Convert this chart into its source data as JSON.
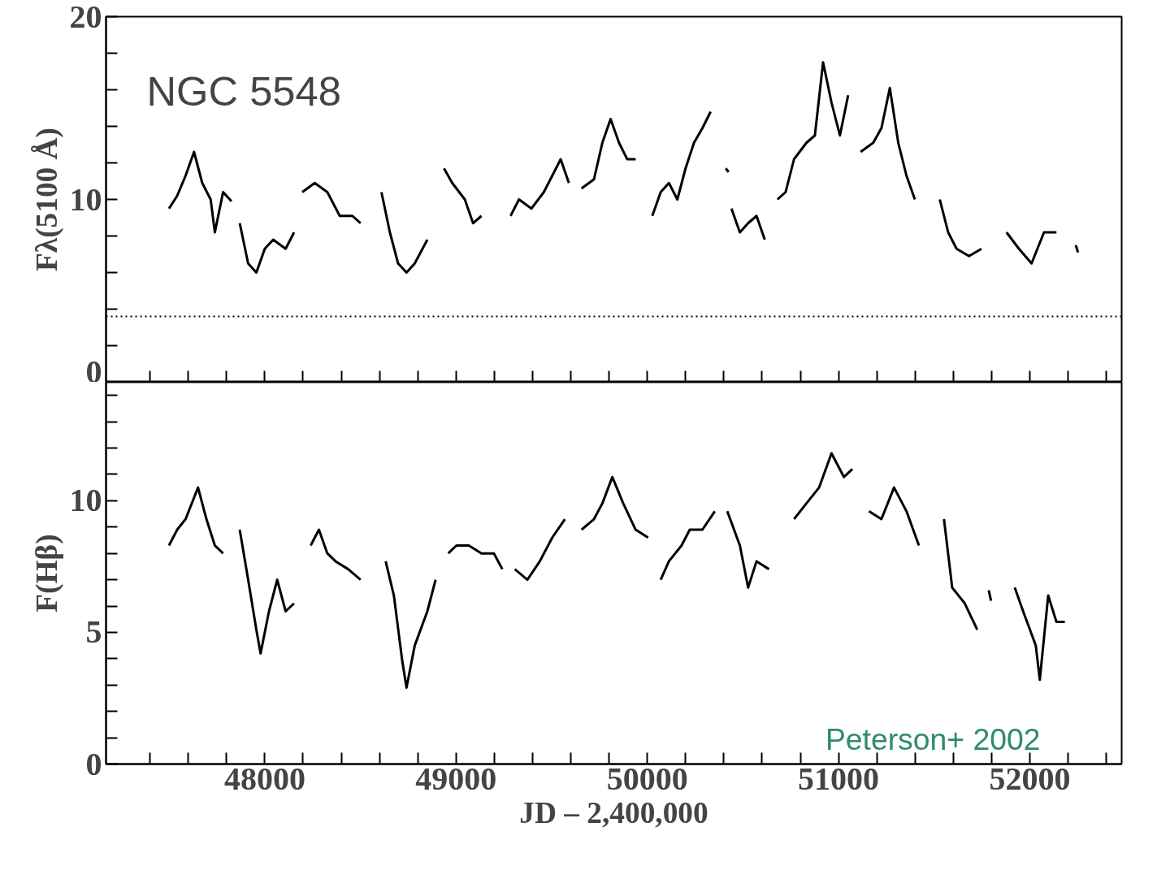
{
  "chart_data": [
    {
      "type": "line",
      "ylabel": "Fλ(5100 Å)",
      "annotations": [
        "NGC 5548"
      ],
      "tick_labels": "y",
      "xlim": [
        47170,
        52480
      ],
      "ylim": [
        0,
        20
      ],
      "xticks": [
        {
          "value": 47400,
          "label": null
        },
        {
          "value": 47600,
          "label": null
        },
        {
          "value": 47800,
          "label": null
        },
        {
          "value": 48000,
          "label": null
        },
        {
          "value": 48200,
          "label": null
        },
        {
          "value": 48400,
          "label": null
        },
        {
          "value": 48600,
          "label": null
        },
        {
          "value": 48800,
          "label": null
        },
        {
          "value": 49000,
          "label": null
        },
        {
          "value": 49200,
          "label": null
        },
        {
          "value": 49400,
          "label": null
        },
        {
          "value": 49600,
          "label": null
        },
        {
          "value": 49800,
          "label": null
        },
        {
          "value": 50000,
          "label": null
        },
        {
          "value": 50200,
          "label": null
        },
        {
          "value": 50400,
          "label": null
        },
        {
          "value": 50600,
          "label": null
        },
        {
          "value": 50800,
          "label": null
        },
        {
          "value": 51000,
          "label": null
        },
        {
          "value": 51200,
          "label": null
        },
        {
          "value": 51400,
          "label": null
        },
        {
          "value": 51600,
          "label": null
        },
        {
          "value": 51800,
          "label": null
        },
        {
          "value": 52000,
          "label": null
        },
        {
          "value": 52200,
          "label": null
        },
        {
          "value": 52400,
          "label": null
        }
      ],
      "yticks": [
        0,
        {
          "value": 2,
          "label": null
        },
        {
          "value": 4,
          "label": null
        },
        {
          "value": 6,
          "label": null
        },
        {
          "value": 8,
          "label": null
        },
        10,
        {
          "value": 12,
          "label": null
        },
        {
          "value": 14,
          "label": null
        },
        {
          "value": 16,
          "label": null
        },
        {
          "value": 18,
          "label": null
        },
        20
      ],
      "ref_lines": [
        {
          "axis": "y",
          "value": 3.6,
          "line_style": "dotted"
        }
      ],
      "x": [
        47499,
        47542,
        47586,
        47630,
        47673,
        47717,
        47739,
        47782,
        47826,
        47848,
        47869,
        47913,
        47956,
        48000,
        48044,
        48109,
        48153,
        48175,
        48196,
        48261,
        48327,
        48392,
        48458,
        48501,
        48560,
        48610,
        48654,
        48697,
        48741,
        48784,
        48850,
        48900,
        48937,
        48980,
        49046,
        49089,
        49133,
        49200,
        49285,
        49329,
        49394,
        49459,
        49503,
        49547,
        49590,
        49620,
        49656,
        49721,
        49765,
        49808,
        49852,
        49895,
        49939,
        49980,
        50026,
        50070,
        50113,
        50157,
        50200,
        50244,
        50288,
        50331,
        50370,
        50410,
        50425,
        50432,
        50440,
        50484,
        50527,
        50571,
        50614,
        50650,
        50680,
        50723,
        50767,
        50832,
        50876,
        50919,
        50963,
        51007,
        51050,
        51080,
        51115,
        51181,
        51224,
        51268,
        51312,
        51355,
        51399,
        51460,
        51529,
        51573,
        51617,
        51682,
        51747,
        51810,
        51878,
        51943,
        52009,
        52074,
        52139,
        52200,
        52240,
        52252
      ],
      "series": [
        {
          "color": "#000000",
          "values": [
            9.5,
            10.2,
            11.3,
            12.6,
            10.9,
            10.0,
            8.2,
            10.4,
            9.9,
            null,
            8.7,
            6.5,
            6.0,
            7.3,
            7.8,
            7.3,
            8.2,
            null,
            10.4,
            10.9,
            10.4,
            9.1,
            9.1,
            8.7,
            null,
            10.4,
            8.2,
            6.5,
            6.0,
            6.5,
            7.8,
            null,
            11.7,
            10.9,
            10.0,
            8.7,
            9.1,
            null,
            9.1,
            10.0,
            9.5,
            10.4,
            11.3,
            12.2,
            10.9,
            null,
            10.6,
            11.1,
            13.1,
            14.4,
            13.1,
            12.2,
            12.2,
            null,
            9.1,
            10.4,
            10.9,
            10.0,
            11.7,
            13.1,
            13.9,
            14.8,
            null,
            11.7,
            11.5,
            null,
            9.5,
            8.2,
            8.7,
            9.1,
            7.8,
            null,
            10.0,
            10.4,
            12.2,
            13.1,
            13.5,
            17.5,
            15.3,
            13.5,
            15.7,
            null,
            12.6,
            13.1,
            13.9,
            16.1,
            13.1,
            11.3,
            10.0,
            null,
            10.0,
            8.2,
            7.3,
            6.9,
            7.3,
            null,
            8.2,
            7.3,
            6.5,
            8.2,
            8.2,
            null,
            7.5,
            7.1
          ]
        }
      ]
    },
    {
      "type": "line",
      "ylabel": "F(Hβ)",
      "xlabel": "JD – 2,400,000",
      "annotations": [
        "Peterson+ 2002"
      ],
      "xlim": [
        47170,
        52480
      ],
      "ylim": [
        0,
        14.5
      ],
      "xticks": [
        {
          "value": 47400,
          "label": null
        },
        {
          "value": 47600,
          "label": null
        },
        {
          "value": 47800,
          "label": null
        },
        48000,
        {
          "value": 48200,
          "label": null
        },
        {
          "value": 48400,
          "label": null
        },
        {
          "value": 48600,
          "label": null
        },
        {
          "value": 48800,
          "label": null
        },
        49000,
        {
          "value": 49200,
          "label": null
        },
        {
          "value": 49400,
          "label": null
        },
        {
          "value": 49600,
          "label": null
        },
        {
          "value": 49800,
          "label": null
        },
        50000,
        {
          "value": 50200,
          "label": null
        },
        {
          "value": 50400,
          "label": null
        },
        {
          "value": 50600,
          "label": null
        },
        {
          "value": 50800,
          "label": null
        },
        51000,
        {
          "value": 51200,
          "label": null
        },
        {
          "value": 51400,
          "label": null
        },
        {
          "value": 51600,
          "label": null
        },
        {
          "value": 51800,
          "label": null
        },
        52000,
        {
          "value": 52200,
          "label": null
        },
        {
          "value": 52400,
          "label": null
        }
      ],
      "yticks": [
        0,
        {
          "value": 1,
          "label": null
        },
        {
          "value": 2,
          "label": null
        },
        {
          "value": 3,
          "label": null
        },
        {
          "value": 4,
          "label": null
        },
        5,
        {
          "value": 6,
          "label": null
        },
        {
          "value": 7,
          "label": null
        },
        {
          "value": 8,
          "label": null
        },
        {
          "value": 9,
          "label": null
        },
        10,
        {
          "value": 11,
          "label": null
        },
        {
          "value": 12,
          "label": null
        },
        {
          "value": 13,
          "label": null
        },
        {
          "value": 14,
          "label": null
        }
      ],
      "x": [
        47499,
        47542,
        47586,
        47651,
        47695,
        47739,
        47782,
        47830,
        47869,
        47913,
        47956,
        47978,
        48022,
        48065,
        48109,
        48153,
        48200,
        48240,
        48283,
        48327,
        48370,
        48436,
        48501,
        48570,
        48632,
        48675,
        48719,
        48741,
        48784,
        48850,
        48893,
        48930,
        48959,
        49002,
        49067,
        49133,
        49198,
        49242,
        49280,
        49307,
        49373,
        49438,
        49503,
        49569,
        49610,
        49656,
        49721,
        49765,
        49817,
        49874,
        49939,
        50004,
        50040,
        50070,
        50113,
        50179,
        50222,
        50288,
        50353,
        50390,
        50418,
        50484,
        50527,
        50571,
        50636,
        50700,
        50767,
        50832,
        50898,
        50963,
        51028,
        51072,
        51110,
        51159,
        51224,
        51290,
        51355,
        51420,
        51480,
        51551,
        51594,
        51660,
        51725,
        51760,
        51785,
        51797,
        51850,
        51921,
        51965,
        52031,
        52052,
        52096,
        52139,
        52183
      ],
      "series": [
        {
          "color": "#000000",
          "values": [
            8.3,
            8.9,
            9.3,
            10.5,
            9.3,
            8.3,
            8.0,
            null,
            8.9,
            7.0,
            5.1,
            4.2,
            5.8,
            7.0,
            5.8,
            6.1,
            null,
            8.3,
            8.9,
            8.0,
            7.7,
            7.4,
            7.0,
            null,
            7.7,
            6.4,
            3.9,
            2.9,
            4.5,
            5.8,
            7.0,
            null,
            8.0,
            8.3,
            8.3,
            8.0,
            8.0,
            7.4,
            null,
            7.4,
            7.0,
            7.7,
            8.6,
            9.3,
            null,
            8.9,
            9.3,
            9.9,
            10.9,
            9.9,
            8.9,
            8.6,
            null,
            7.0,
            7.7,
            8.3,
            8.9,
            8.9,
            9.6,
            null,
            9.6,
            8.3,
            6.7,
            7.7,
            7.4,
            null,
            9.3,
            9.9,
            10.5,
            11.8,
            10.9,
            11.2,
            null,
            9.6,
            9.3,
            10.5,
            9.6,
            8.3,
            null,
            9.3,
            6.7,
            6.1,
            5.1,
            null,
            6.6,
            6.2,
            null,
            6.7,
            5.8,
            4.5,
            3.2,
            6.4,
            5.4,
            5.4
          ]
        }
      ]
    }
  ]
}
